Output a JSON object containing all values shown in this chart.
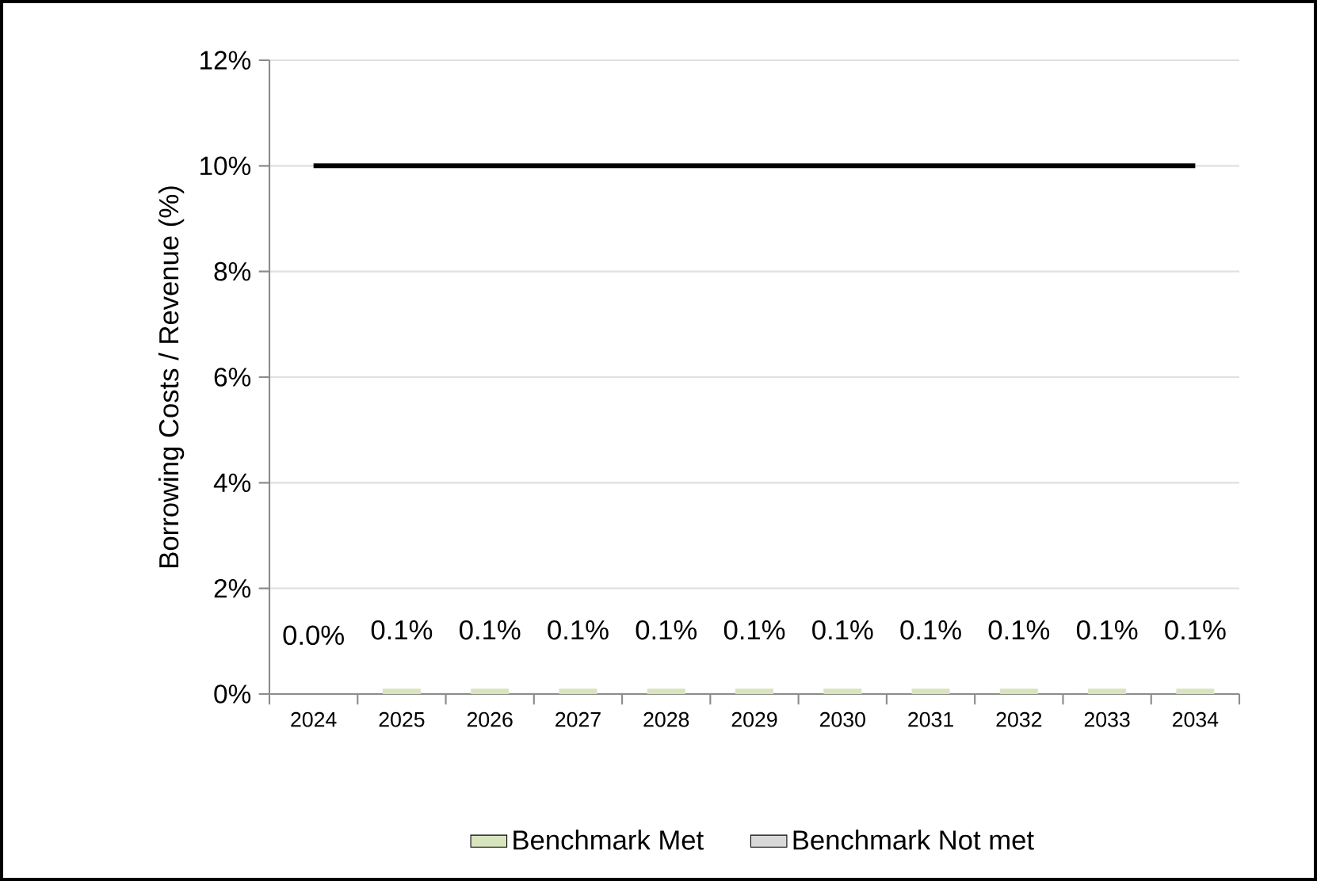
{
  "chart_data": {
    "type": "bar",
    "ylabel": "Borrowing Costs / Revenue (%)",
    "categories": [
      "2024",
      "2025",
      "2026",
      "2027",
      "2028",
      "2029",
      "2030",
      "2031",
      "2032",
      "2033",
      "2034"
    ],
    "series": [
      {
        "name": "Benchmark Met",
        "color": "#d7e4bd",
        "values": [
          0.0,
          0.1,
          0.1,
          0.1,
          0.1,
          0.1,
          0.1,
          0.1,
          0.1,
          0.1,
          0.1
        ],
        "value_labels": [
          "0.0%",
          "0.1%",
          "0.1%",
          "0.1%",
          "0.1%",
          "0.1%",
          "0.1%",
          "0.1%",
          "0.1%",
          "0.1%",
          "0.1%"
        ]
      },
      {
        "name": "Benchmark Not met",
        "color": "#d9d9d9",
        "values": [
          null,
          null,
          null,
          null,
          null,
          null,
          null,
          null,
          null,
          null,
          null
        ]
      },
      {
        "type": "line",
        "color": "#000000",
        "values": [
          10,
          10,
          10,
          10,
          10,
          10,
          10,
          10,
          10,
          10,
          10
        ]
      }
    ],
    "ylim": [
      0,
      12
    ],
    "yticks": [
      {
        "value": 0,
        "label": "0%"
      },
      {
        "value": 2,
        "label": "2%"
      },
      {
        "value": 4,
        "label": "4%"
      },
      {
        "value": 6,
        "label": "6%"
      },
      {
        "value": 8,
        "label": "8%"
      },
      {
        "value": 10,
        "label": "10%"
      },
      {
        "value": 12,
        "label": "12%"
      }
    ],
    "grid": "y",
    "legend": "bottom"
  }
}
